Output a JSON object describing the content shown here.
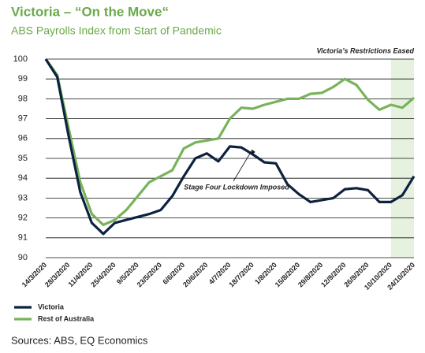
{
  "chart_data": {
    "type": "line",
    "title": "Victoria – “On the Move“",
    "subtitle": "ABS Payrolls Index from Start of Pandemic",
    "source": "Sources: ABS, EQ Economics",
    "categories": [
      "14/3/2020",
      null,
      "28/3/2020",
      null,
      "11/4/2020",
      null,
      "25/4/2020",
      null,
      "9/5/2020",
      null,
      "23/5/2020",
      null,
      "6/6/2020",
      null,
      "20/6/2020",
      null,
      "4/7/2020",
      null,
      "18/7/2020",
      null,
      "1/8/2020",
      null,
      "15/8/2020",
      null,
      "29/8/2020",
      null,
      "12/9/2020",
      null,
      "26/9/2020",
      null,
      "10/10/2020",
      null,
      "24/10/2020"
    ],
    "series": [
      {
        "name": "Victoria",
        "color": "#0d2240",
        "values": [
          100,
          99.1,
          96.1,
          93.3,
          91.75,
          91.2,
          91.75,
          91.9,
          92.05,
          92.2,
          92.4,
          93.1,
          94.1,
          95.0,
          95.25,
          94.85,
          95.6,
          95.55,
          95.2,
          94.8,
          94.75,
          93.7,
          93.2,
          92.8,
          92.9,
          93.0,
          93.45,
          93.5,
          93.4,
          92.8,
          92.8,
          93.15,
          94.1
        ]
      },
      {
        "name": "Rest of Australia",
        "color": "#78b35a",
        "values": [
          100,
          99.2,
          96.5,
          93.8,
          92.2,
          91.65,
          91.9,
          92.4,
          93.1,
          93.8,
          94.1,
          94.4,
          95.5,
          95.8,
          95.9,
          96.0,
          97.0,
          97.55,
          97.5,
          97.7,
          97.85,
          98.0,
          98.0,
          98.25,
          98.3,
          98.6,
          99.0,
          98.7,
          97.95,
          97.45,
          97.7,
          97.55,
          98.05
        ]
      }
    ],
    "ylim": [
      90,
      100
    ],
    "yticks": [
      90,
      91,
      92,
      93,
      94,
      95,
      96,
      97,
      98,
      99,
      100
    ],
    "grid": true,
    "legend": "bottom-left",
    "shaded_region": {
      "from": "10/10/2020",
      "label": "Victoria’s Restrictions Eased",
      "color": "#e6f1df"
    },
    "annotations": [
      {
        "text": "Stage Four Lockdown Imposed",
        "at": "1/8/2020"
      }
    ]
  }
}
